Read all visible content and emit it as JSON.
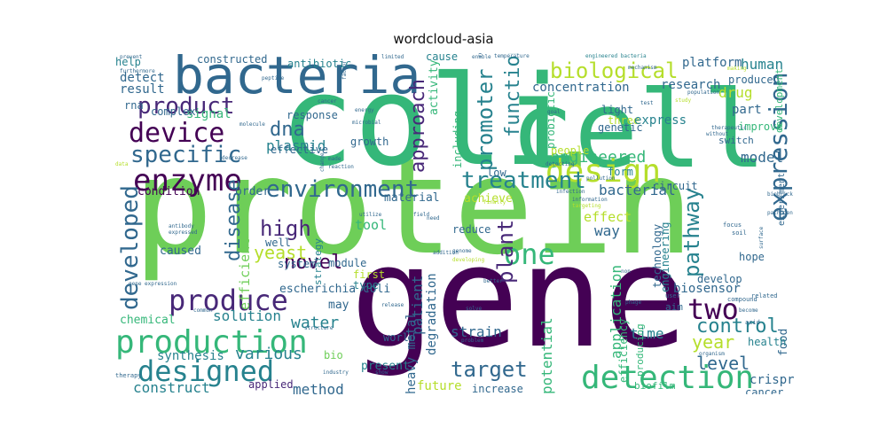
{
  "title": "wordcloud-asia",
  "palette": {
    "deep_purple": "#440154",
    "purple": "#482878",
    "indigo": "#3e4a89",
    "blue": "#31688e",
    "teal": "#26828e",
    "green_teal": "#1f9e89",
    "green": "#35b779",
    "light_green": "#6ece58",
    "lime": "#b5de2b",
    "yellow": "#fde725"
  },
  "chart_data": {
    "type": "wordcloud",
    "words": [
      {
        "text": "protein",
        "color": "#6ece58"
      },
      {
        "text": "gene",
        "color": "#440154"
      },
      {
        "text": "coli",
        "color": "#35b779"
      },
      {
        "text": "cell",
        "color": "#35b779"
      },
      {
        "text": "bacteria",
        "color": "#31688e"
      },
      {
        "text": "production",
        "color": "#35b779"
      },
      {
        "text": "design",
        "color": "#b5de2b"
      },
      {
        "text": "detection",
        "color": "#35b779"
      },
      {
        "text": "designed",
        "color": "#26828e"
      },
      {
        "text": "enzyme",
        "color": "#440154"
      },
      {
        "text": "device",
        "color": "#440154"
      },
      {
        "text": "produce",
        "color": "#482878"
      },
      {
        "text": "product",
        "color": "#482878"
      },
      {
        "text": "environment",
        "color": "#31688e"
      },
      {
        "text": "specific",
        "color": "#31688e"
      },
      {
        "text": "one",
        "color": "#35b779"
      },
      {
        "text": "two",
        "color": "#440154"
      },
      {
        "text": "expression",
        "color": "#31688e"
      },
      {
        "text": "treatment",
        "color": "#26828e"
      },
      {
        "text": "biological",
        "color": "#b5de2b"
      },
      {
        "text": "target",
        "color": "#31688e"
      },
      {
        "text": "developed",
        "color": "#31688e"
      },
      {
        "text": "promoter",
        "color": "#26828e"
      },
      {
        "text": "approach",
        "color": "#482878"
      },
      {
        "text": "pathway",
        "color": "#26828e"
      },
      {
        "text": "control",
        "color": "#26828e"
      },
      {
        "text": "disease",
        "color": "#31688e"
      },
      {
        "text": "plant",
        "color": "#482878"
      },
      {
        "text": "novel",
        "color": "#440154"
      },
      {
        "text": "high",
        "color": "#482878"
      },
      {
        "text": "yeast",
        "color": "#b5de2b"
      },
      {
        "text": "dna",
        "color": "#31688e"
      },
      {
        "text": "function",
        "color": "#26828e"
      },
      {
        "text": "year",
        "color": "#b5de2b"
      },
      {
        "text": "level",
        "color": "#31688e"
      },
      {
        "text": "engineered",
        "color": "#35b779"
      },
      {
        "text": "water",
        "color": "#26828e"
      },
      {
        "text": "solution",
        "color": "#26828e"
      },
      {
        "text": "construct",
        "color": "#26828e"
      },
      {
        "text": "method",
        "color": "#31688e"
      },
      {
        "text": "various",
        "color": "#26828e"
      },
      {
        "text": "plasmid",
        "color": "#26828e"
      },
      {
        "text": "result",
        "color": "#31688e"
      },
      {
        "text": "detect",
        "color": "#31688e"
      },
      {
        "text": "signal",
        "color": "#35b779"
      },
      {
        "text": "model",
        "color": "#31688e"
      },
      {
        "text": "drug",
        "color": "#b5de2b"
      },
      {
        "text": "human",
        "color": "#26828e"
      },
      {
        "text": "bacterial",
        "color": "#31688e"
      },
      {
        "text": "biosensor",
        "color": "#31688e"
      },
      {
        "text": "strain",
        "color": "#31688e"
      },
      {
        "text": "time",
        "color": "#26828e"
      },
      {
        "text": "concentration",
        "color": "#31688e"
      },
      {
        "text": "research",
        "color": "#31688e"
      },
      {
        "text": "platform",
        "color": "#31688e"
      },
      {
        "text": "potential",
        "color": "#35b779"
      },
      {
        "text": "application",
        "color": "#35b779"
      },
      {
        "text": "efficient",
        "color": "#6ece58"
      },
      {
        "text": "tool",
        "color": "#35b779"
      },
      {
        "text": "way",
        "color": "#31688e"
      },
      {
        "text": "effect",
        "color": "#b5de2b"
      },
      {
        "text": "patient",
        "color": "#31688e"
      },
      {
        "text": "degradation",
        "color": "#31688e"
      },
      {
        "text": "heavy metal",
        "color": "#31688e"
      },
      {
        "text": "crispr",
        "color": "#31688e"
      },
      {
        "text": "cancer",
        "color": "#31688e"
      },
      {
        "text": "food",
        "color": "#31688e"
      },
      {
        "text": "health",
        "color": "#26828e"
      },
      {
        "text": "future",
        "color": "#b5de2b"
      },
      {
        "text": "increase",
        "color": "#31688e"
      },
      {
        "text": "present",
        "color": "#26828e"
      },
      {
        "text": "applied",
        "color": "#482878"
      },
      {
        "text": "synthesis",
        "color": "#26828e"
      },
      {
        "text": "chemical",
        "color": "#35b779"
      },
      {
        "text": "may",
        "color": "#31688e"
      },
      {
        "text": "escherichia coli",
        "color": "#31688e"
      },
      {
        "text": "system",
        "color": "#31688e"
      },
      {
        "text": "caused",
        "color": "#31688e"
      },
      {
        "text": "type",
        "color": "#26828e"
      },
      {
        "text": "module",
        "color": "#31688e"
      },
      {
        "text": "first",
        "color": "#b5de2b"
      },
      {
        "text": "well",
        "color": "#31688e"
      },
      {
        "text": "strategy",
        "color": "#26828e"
      },
      {
        "text": "condition",
        "color": "#440154"
      },
      {
        "text": "order",
        "color": "#31688e"
      },
      {
        "text": "material",
        "color": "#31688e"
      },
      {
        "text": "achieve",
        "color": "#b5de2b"
      },
      {
        "text": "low",
        "color": "#31688e"
      },
      {
        "text": "growth",
        "color": "#31688e"
      },
      {
        "text": "effective",
        "color": "#31688e"
      },
      {
        "text": "response",
        "color": "#31688e"
      },
      {
        "text": "complex",
        "color": "#31688e"
      },
      {
        "text": "rna",
        "color": "#31688e"
      },
      {
        "text": "help",
        "color": "#26828e"
      },
      {
        "text": "constructed",
        "color": "#31688e"
      },
      {
        "text": "antibiotic",
        "color": "#26828e"
      },
      {
        "text": "cause",
        "color": "#26828e"
      },
      {
        "text": "activity",
        "color": "#35b779"
      },
      {
        "text": "including",
        "color": "#35b779"
      },
      {
        "text": "probiotic",
        "color": "#35b779"
      },
      {
        "text": "three",
        "color": "#b5de2b"
      },
      {
        "text": "light",
        "color": "#31688e"
      },
      {
        "text": "genetic",
        "color": "#31688e"
      },
      {
        "text": "express",
        "color": "#26828e"
      },
      {
        "text": "produced",
        "color": "#31688e"
      },
      {
        "text": "part",
        "color": "#31688e"
      },
      {
        "text": "improve",
        "color": "#35b779"
      },
      {
        "text": "development",
        "color": "#35b779"
      },
      {
        "text": "people",
        "color": "#b5de2b"
      },
      {
        "text": "form",
        "color": "#26828e"
      },
      {
        "text": "circuit",
        "color": "#31688e"
      },
      {
        "text": "experiment",
        "color": "#31688e"
      },
      {
        "text": "technology",
        "color": "#31688e"
      },
      {
        "text": "engineering",
        "color": "#26828e"
      },
      {
        "text": "develop",
        "color": "#31688e"
      },
      {
        "text": "hope",
        "color": "#31688e"
      },
      {
        "text": "switch",
        "color": "#31688e"
      },
      {
        "text": "aim",
        "color": "#31688e"
      },
      {
        "text": "efficiency",
        "color": "#35b779"
      },
      {
        "text": "producing",
        "color": "#35b779"
      },
      {
        "text": "biofilm",
        "color": "#35b779"
      },
      {
        "text": "world",
        "color": "#31688e"
      },
      {
        "text": "bio",
        "color": "#6ece58"
      },
      {
        "text": "reduce",
        "color": "#31688e"
      },
      {
        "text": "pathogen",
        "color": "#31688e"
      },
      {
        "text": "focus",
        "color": "#31688e"
      },
      {
        "text": "soil",
        "color": "#31688e"
      },
      {
        "text": "related",
        "color": "#31688e"
      },
      {
        "text": "compound",
        "color": "#31688e"
      },
      {
        "text": "acid",
        "color": "#31688e"
      },
      {
        "text": "therapy",
        "color": "#31688e"
      },
      {
        "text": "industry",
        "color": "#31688e"
      },
      {
        "text": "problem",
        "color": "#31688e"
      },
      {
        "text": "phage",
        "color": "#31688e"
      },
      {
        "text": "user",
        "color": "#31688e"
      },
      {
        "text": "become",
        "color": "#31688e"
      },
      {
        "text": "population",
        "color": "#31688e"
      },
      {
        "text": "making",
        "color": "#b5de2b"
      },
      {
        "text": "mechanism",
        "color": "#31688e"
      },
      {
        "text": "engineered bacteria",
        "color": "#26828e"
      },
      {
        "text": "temperature",
        "color": "#31688e"
      },
      {
        "text": "infection",
        "color": "#31688e"
      },
      {
        "text": "information",
        "color": "#31688e"
      },
      {
        "text": "targeting",
        "color": "#b5de2b"
      },
      {
        "text": "biobrick",
        "color": "#31688e"
      },
      {
        "text": "antibody",
        "color": "#31688e"
      },
      {
        "text": "expressed",
        "color": "#31688e"
      },
      {
        "text": "gene expression",
        "color": "#31688e"
      },
      {
        "text": "peptide",
        "color": "#31688e"
      },
      {
        "text": "prevent",
        "color": "#31688e"
      },
      {
        "text": "furthermore",
        "color": "#31688e"
      },
      {
        "text": "limited",
        "color": "#31688e"
      },
      {
        "text": "factor",
        "color": "#31688e"
      },
      {
        "text": "energy",
        "color": "#31688e"
      },
      {
        "text": "microbial",
        "color": "#31688e"
      },
      {
        "text": "molecule",
        "color": "#31688e"
      },
      {
        "text": "cancer",
        "color": "#31688e"
      },
      {
        "text": "goal",
        "color": "#31688e"
      },
      {
        "text": "test",
        "color": "#31688e"
      },
      {
        "text": "study",
        "color": "#b5de2b"
      },
      {
        "text": "therapeutic",
        "color": "#31688e"
      },
      {
        "text": "without",
        "color": "#31688e"
      },
      {
        "text": "solve",
        "color": "#31688e"
      },
      {
        "text": "finally",
        "color": "#b5de2b"
      },
      {
        "text": "need",
        "color": "#31688e"
      },
      {
        "text": "field",
        "color": "#31688e"
      },
      {
        "text": "utilize",
        "color": "#31688e"
      },
      {
        "text": "developing",
        "color": "#b5de2b"
      },
      {
        "text": "genome",
        "color": "#31688e"
      },
      {
        "text": "addition",
        "color": "#31688e"
      },
      {
        "text": "enable",
        "color": "#31688e"
      },
      {
        "text": "receptor",
        "color": "#31688e"
      },
      {
        "text": "better",
        "color": "#31688e"
      },
      {
        "text": "organism",
        "color": "#31688e"
      },
      {
        "text": "surface",
        "color": "#31688e"
      },
      {
        "text": "data",
        "color": "#b5de2b"
      },
      {
        "text": "made",
        "color": "#31688e"
      },
      {
        "text": "reaction",
        "color": "#31688e"
      },
      {
        "text": "structure",
        "color": "#31688e"
      },
      {
        "text": "release",
        "color": "#31688e"
      },
      {
        "text": "show",
        "color": "#31688e"
      },
      {
        "text": "common",
        "color": "#31688e"
      },
      {
        "text": "detecting",
        "color": "#31688e"
      },
      {
        "text": "pollution",
        "color": "#31688e"
      },
      {
        "text": "non",
        "color": "#31688e"
      },
      {
        "text": "change",
        "color": "#31688e"
      },
      {
        "text": "decrease",
        "color": "#31688e"
      }
    ]
  }
}
